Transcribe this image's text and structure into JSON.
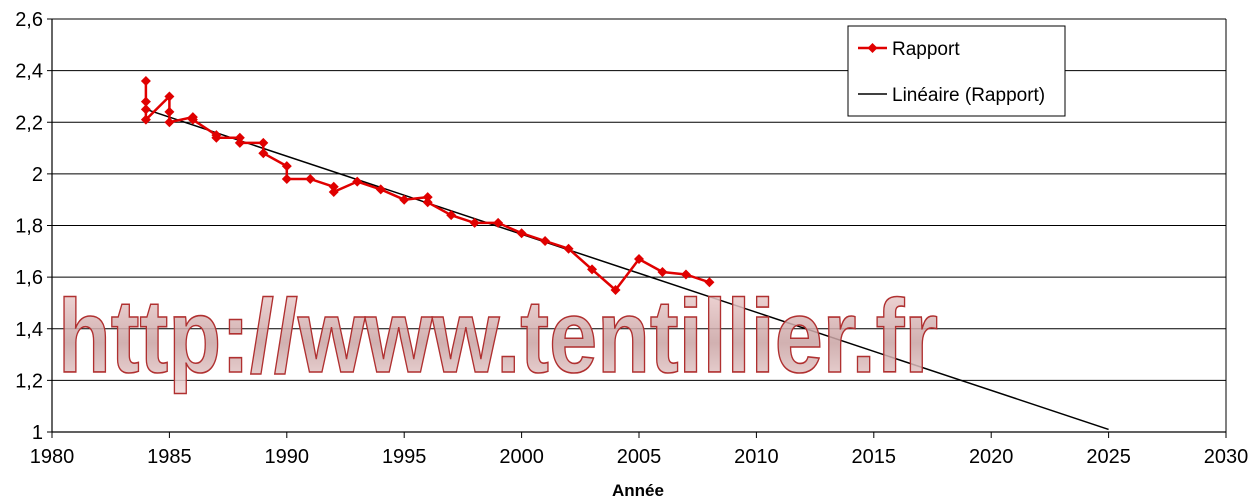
{
  "chart_data": {
    "type": "line",
    "xlabel": "Année",
    "ylabel": "",
    "xlim": [
      1980,
      2030
    ],
    "ylim": [
      1,
      2.6
    ],
    "xticks": [
      1980,
      1985,
      1990,
      1995,
      2000,
      2005,
      2010,
      2015,
      2020,
      2025,
      2030
    ],
    "yticks": [
      1,
      1.2,
      1.4,
      1.6,
      1.8,
      2,
      2.2,
      2.4,
      2.6
    ],
    "ytick_labels": [
      "1",
      "1,2",
      "1,4",
      "1,6",
      "1,8",
      "2",
      "2,2",
      "2,4",
      "2,6"
    ],
    "grid": "horizontal",
    "legend_position": "top-right",
    "series": [
      {
        "name": "Rapport",
        "color": "#e00000",
        "marker": "diamond",
        "x": [
          1984,
          1984,
          1984,
          1984,
          1985,
          1985,
          1985,
          1986,
          1986,
          1987,
          1987,
          1988,
          1988,
          1989,
          1989,
          1990,
          1990,
          1991,
          1992,
          1992,
          1993,
          1994,
          1995,
          1996,
          1996,
          1997,
          1998,
          1999,
          2000,
          2001,
          2002,
          2003,
          2004,
          2005,
          2006,
          2007,
          2008
        ],
        "y": [
          2.36,
          2.28,
          2.25,
          2.21,
          2.3,
          2.24,
          2.2,
          2.22,
          2.21,
          2.15,
          2.14,
          2.14,
          2.12,
          2.12,
          2.08,
          2.03,
          1.98,
          1.98,
          1.95,
          1.93,
          1.97,
          1.94,
          1.9,
          1.91,
          1.89,
          1.84,
          1.81,
          1.81,
          1.77,
          1.74,
          1.71,
          1.63,
          1.55,
          1.67,
          1.62,
          1.61,
          1.58
        ]
      },
      {
        "name": "Linéaire (Rapport)",
        "color": "#000000",
        "type": "trendline",
        "x": [
          1984,
          2025
        ],
        "y": [
          2.25,
          1.01
        ]
      }
    ],
    "watermark": "http://www.tentillier.fr"
  }
}
